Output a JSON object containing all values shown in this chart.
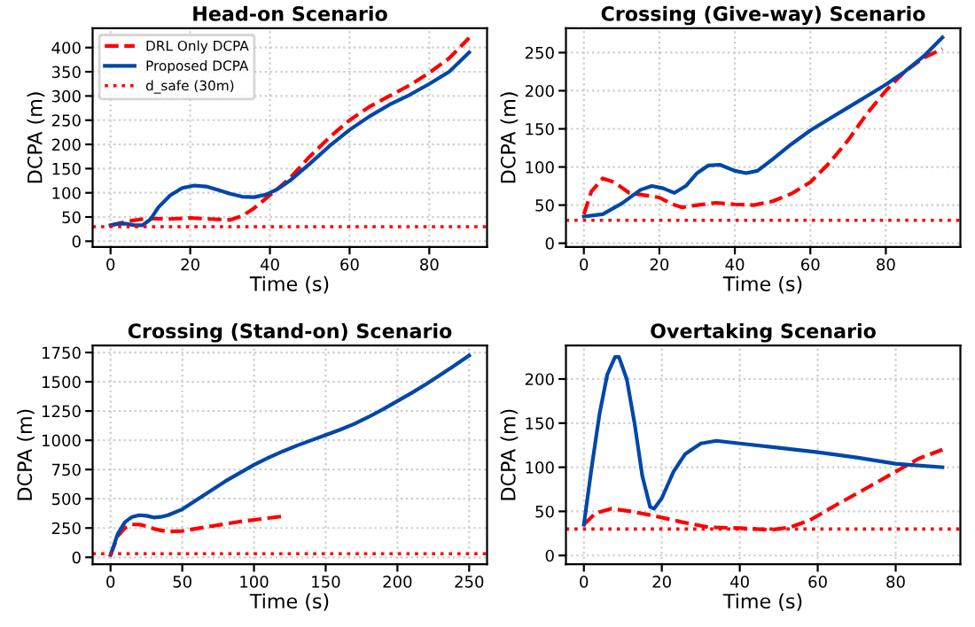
{
  "chart_data": [
    {
      "type": "line",
      "title": "Head-on Scenario",
      "xlabel": "Time (s)",
      "ylabel": "DCPA (m)",
      "xlim": [
        -4.5,
        94.5
      ],
      "ylim": [
        -12,
        440
      ],
      "xticks": [
        0,
        20,
        40,
        60,
        80
      ],
      "yticks": [
        0,
        50,
        100,
        150,
        200,
        250,
        300,
        350,
        400
      ],
      "grid": true,
      "legend": "top left",
      "marker": "none",
      "series": [
        {
          "name": "DRL Only DCPA",
          "color": "#ff0000",
          "line_style": "dashed",
          "x": [
            0,
            5,
            9,
            15,
            20,
            25,
            30,
            33,
            36,
            40,
            45,
            50,
            55,
            60,
            65,
            70,
            75,
            80,
            85,
            90
          ],
          "values": [
            33,
            42,
            47,
            46,
            48,
            46,
            44,
            52,
            68,
            95,
            130,
            175,
            215,
            250,
            278,
            300,
            322,
            348,
            378,
            420
          ]
        },
        {
          "name": "Proposed DCPA",
          "color": "#0047ab",
          "line_style": "solid",
          "x": [
            0,
            2,
            4,
            6,
            8,
            10,
            12,
            15,
            18,
            21,
            24,
            27,
            30,
            33,
            36,
            39,
            42,
            45,
            50,
            55,
            60,
            65,
            70,
            75,
            80,
            85,
            90
          ],
          "values": [
            33,
            36,
            36,
            33,
            33,
            45,
            70,
            95,
            110,
            115,
            113,
            106,
            98,
            92,
            91,
            96,
            108,
            125,
            160,
            197,
            230,
            258,
            282,
            302,
            325,
            350,
            390
          ]
        }
      ],
      "ref_lines": [
        {
          "axis": "y",
          "value": 30,
          "label": "d_safe (30m)",
          "color": "#ff0000",
          "line_style": "dotted"
        }
      ]
    },
    {
      "type": "line",
      "title": "Crossing (Give-way) Scenario",
      "xlabel": "Time (s)",
      "ylabel": "DCPA (m)",
      "xlim": [
        -4.75,
        99.75
      ],
      "ylim": [
        -5,
        282
      ],
      "xticks": [
        0,
        20,
        40,
        60,
        80
      ],
      "yticks": [
        0,
        50,
        100,
        150,
        200,
        250
      ],
      "grid": true,
      "marker": "none",
      "series": [
        {
          "color": "#ff0000",
          "line_style": "dashed",
          "x": [
            0,
            2,
            5,
            8,
            12,
            16,
            20,
            23,
            26,
            30,
            35,
            40,
            45,
            50,
            55,
            60,
            65,
            70,
            75,
            80,
            85,
            90,
            95
          ],
          "values": [
            38,
            68,
            85,
            80,
            66,
            63,
            60,
            52,
            47,
            50,
            53,
            51,
            50,
            55,
            65,
            80,
            105,
            135,
            170,
            200,
            225,
            243,
            255
          ]
        },
        {
          "color": "#0047ab",
          "line_style": "solid",
          "x": [
            0,
            5,
            10,
            15,
            18,
            21,
            24,
            27,
            30,
            33,
            36,
            40,
            43,
            46,
            50,
            55,
            60,
            65,
            70,
            75,
            80,
            85,
            90,
            95
          ],
          "values": [
            35,
            38,
            52,
            70,
            75,
            72,
            66,
            75,
            92,
            102,
            103,
            95,
            92,
            95,
            110,
            130,
            148,
            163,
            178,
            193,
            208,
            225,
            245,
            270
          ]
        }
      ],
      "ref_lines": [
        {
          "axis": "y",
          "value": 30,
          "color": "#ff0000",
          "line_style": "dotted"
        }
      ]
    },
    {
      "type": "line",
      "title": "Crossing (Stand-on) Scenario",
      "xlabel": "Time (s)",
      "ylabel": "DCPA (m)",
      "xlim": [
        -12.5,
        262.5
      ],
      "ylim": [
        -60,
        1810
      ],
      "xticks": [
        0,
        50,
        100,
        150,
        200,
        250
      ],
      "yticks": [
        0,
        250,
        500,
        750,
        1000,
        1250,
        1500,
        1750
      ],
      "grid": true,
      "marker": "none",
      "series": [
        {
          "color": "#ff0000",
          "line_style": "dashed",
          "x": [
            0,
            5,
            10,
            15,
            20,
            25,
            30,
            35,
            40,
            50,
            60,
            70,
            80,
            90,
            100,
            110,
            120
          ],
          "values": [
            20,
            180,
            250,
            280,
            280,
            265,
            245,
            230,
            220,
            225,
            245,
            265,
            285,
            305,
            320,
            335,
            350
          ]
        },
        {
          "color": "#0047ab",
          "line_style": "solid",
          "x": [
            0,
            5,
            10,
            15,
            20,
            25,
            30,
            35,
            40,
            50,
            60,
            70,
            80,
            90,
            100,
            110,
            120,
            130,
            140,
            150,
            160,
            170,
            180,
            190,
            200,
            210,
            220,
            230,
            240,
            250
          ],
          "values": [
            20,
            200,
            300,
            345,
            360,
            355,
            340,
            345,
            360,
            410,
            490,
            570,
            650,
            720,
            790,
            850,
            905,
            955,
            1000,
            1045,
            1090,
            1140,
            1200,
            1265,
            1335,
            1405,
            1480,
            1560,
            1640,
            1725
          ]
        }
      ],
      "ref_lines": [
        {
          "axis": "y",
          "value": 30,
          "color": "#ff0000",
          "line_style": "dotted"
        }
      ]
    },
    {
      "type": "line",
      "title": "Overtaking Scenario",
      "xlabel": "Time (s)",
      "ylabel": "DCPA (m)",
      "xlim": [
        -4.6,
        96.6
      ],
      "ylim": [
        -10,
        238
      ],
      "xticks": [
        0,
        20,
        40,
        60,
        80
      ],
      "yticks": [
        0,
        50,
        100,
        150,
        200
      ],
      "grid": true,
      "marker": "none",
      "series": [
        {
          "color": "#ff0000",
          "line_style": "dashed",
          "x": [
            0,
            3,
            7,
            12,
            18,
            25,
            32,
            40,
            48,
            53,
            58,
            65,
            72,
            80,
            86,
            92
          ],
          "values": [
            35,
            48,
            53,
            50,
            45,
            38,
            32,
            31,
            29,
            32,
            40,
            58,
            75,
            95,
            110,
            120
          ]
        },
        {
          "color": "#0047ab",
          "line_style": "solid",
          "x": [
            0,
            2,
            4,
            6,
            8,
            9,
            11,
            13,
            15,
            17,
            18,
            20,
            23,
            26,
            30,
            34,
            40,
            50,
            60,
            70,
            80,
            92
          ],
          "values": [
            35,
            100,
            160,
            205,
            225,
            225,
            200,
            150,
            90,
            55,
            53,
            65,
            95,
            115,
            127,
            130,
            127,
            122,
            117,
            111,
            104,
            100
          ]
        }
      ],
      "ref_lines": [
        {
          "axis": "y",
          "value": 30,
          "color": "#ff0000",
          "line_style": "dotted"
        }
      ]
    }
  ]
}
